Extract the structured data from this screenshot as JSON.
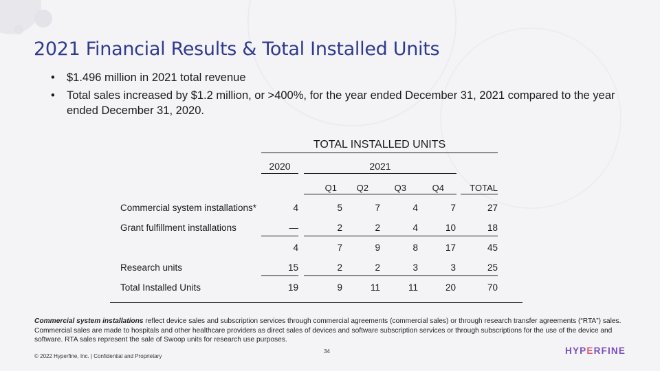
{
  "slide": {
    "title": "2021 Financial Results & Total Installed Units",
    "bullets": [
      "$1.496 million in 2021 total revenue",
      "Total sales increased by $1.2 million, or >400%, for the year ended December 31, 2021 compared to the year ended December 31, 2020."
    ],
    "bullet_marker": "•"
  },
  "table": {
    "title": "TOTAL INSTALLED UNITS",
    "year_2020": "2020",
    "year_2021": "2021",
    "columns": [
      "Q1",
      "Q2",
      "Q3",
      "Q4",
      "TOTAL"
    ],
    "rows": [
      {
        "label": "Commercial system installations*",
        "values": [
          "4",
          "5",
          "7",
          "4",
          "7",
          "27"
        ]
      },
      {
        "label": "Grant fulfillment installations",
        "values": [
          "—",
          "2",
          "2",
          "4",
          "10",
          "18"
        ]
      },
      {
        "label": "",
        "values": [
          "4",
          "7",
          "9",
          "8",
          "17",
          "45"
        ]
      },
      {
        "label": "Research units",
        "values": [
          "15",
          "2",
          "2",
          "3",
          "3",
          "25"
        ]
      },
      {
        "label": "Total Installed Units",
        "values": [
          "19",
          "9",
          "11",
          "11",
          "20",
          "70"
        ]
      }
    ]
  },
  "footnote": {
    "bold_lead": "Commercial system installations",
    "text": " reflect device sales and subscription services through commercial agreements (commercial sales) or through research transfer agreements (“RTA”) sales. Commercial sales are made to hospitals and other healthcare providers as direct sales of devices and software subscription services or through subscriptions for the use of the device and software. RTA sales represent the sale of Swoop units for research use purposes."
  },
  "page_number": "34",
  "copyright": "© 2022 Hyperfine, Inc. | Confidential and Proprietary",
  "logo": {
    "part1": "HYP",
    "part2": "E",
    "part3": "RFINE"
  },
  "colors": {
    "title": "#2f3a8f",
    "logo_purple": "#7a4fbf",
    "logo_accent": "#e0556a"
  }
}
